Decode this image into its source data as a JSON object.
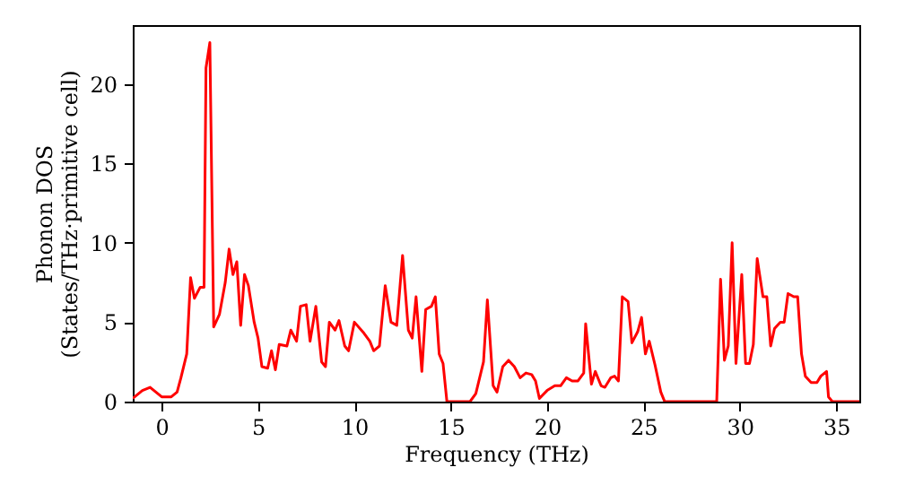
{
  "chart_data": {
    "type": "line",
    "xlabel": "Frequency (THz)",
    "ylabel": "Phonon DOS\n(States/THz·primitive cell)",
    "xlim": [
      -1.5,
      36.2
    ],
    "ylim": [
      0,
      23.7
    ],
    "xticks": [
      0,
      5,
      10,
      15,
      20,
      25,
      30,
      35
    ],
    "yticks": [
      0,
      5,
      10,
      15,
      20
    ],
    "grid": false,
    "series": [
      {
        "color": "#ff0000",
        "x": [
          -1.5,
          -1,
          -0.6,
          0,
          0.5,
          0.8,
          1,
          1.3,
          1.5,
          1.7,
          2,
          2.2,
          2.3,
          2.5,
          2.7,
          3,
          3.3,
          3.5,
          3.7,
          3.9,
          4.1,
          4.3,
          4.5,
          4.8,
          5,
          5.2,
          5.5,
          5.7,
          5.9,
          6.1,
          6.5,
          6.7,
          7,
          7.2,
          7.5,
          7.7,
          8,
          8.3,
          8.5,
          8.7,
          9,
          9.2,
          9.5,
          9.7,
          10,
          10.5,
          10.8,
          11,
          11.3,
          11.6,
          11.9,
          12.2,
          12.5,
          12.8,
          13,
          13.2,
          13.5,
          13.7,
          14,
          14.2,
          14.4,
          14.6,
          14.8,
          16,
          16.3,
          16.7,
          16.9,
          17.2,
          17.4,
          17.7,
          18,
          18.3,
          18.6,
          18.9,
          19.2,
          19.4,
          19.6,
          20,
          20.4,
          20.7,
          21,
          21.3,
          21.6,
          21.9,
          22,
          22.3,
          22.5,
          22.8,
          23,
          23.3,
          23.5,
          23.7,
          23.9,
          24.2,
          24.4,
          24.7,
          24.9,
          25.1,
          25.3,
          25.6,
          25.9,
          26.1,
          28.8,
          29,
          29.2,
          29.4,
          29.6,
          29.8,
          30.1,
          30.3,
          30.5,
          30.7,
          30.9,
          31.2,
          31.4,
          31.6,
          31.8,
          32.1,
          32.3,
          32.5,
          32.8,
          33,
          33.2,
          33.4,
          33.7,
          34,
          34.2,
          34.5,
          34.6,
          34.8,
          36.2
        ],
        "values": [
          0.2,
          0.7,
          0.9,
          0.3,
          0.3,
          0.6,
          1.5,
          3,
          7.8,
          6.5,
          7.2,
          7.2,
          21,
          22.6,
          4.7,
          5.5,
          7.5,
          9.6,
          8,
          8.8,
          4.8,
          8,
          7.3,
          5,
          4,
          2.2,
          2.1,
          3.2,
          2,
          3.6,
          3.5,
          4.5,
          3.8,
          6,
          6.1,
          3.8,
          6,
          2.5,
          2.2,
          5,
          4.5,
          5.1,
          3.5,
          3.2,
          5,
          4.3,
          3.8,
          3.2,
          3.5,
          7.3,
          5,
          4.8,
          9.2,
          4.5,
          4,
          6.6,
          1.9,
          5.8,
          6,
          6.6,
          3,
          2.4,
          0,
          0,
          0.5,
          2.5,
          6.4,
          1,
          0.6,
          2.2,
          2.6,
          2.2,
          1.5,
          1.8,
          1.7,
          1.3,
          0.2,
          0.7,
          1,
          1,
          1.5,
          1.3,
          1.3,
          1.8,
          4.9,
          1.1,
          1.9,
          1,
          0.9,
          1.5,
          1.6,
          1.3,
          6.6,
          6.3,
          3.7,
          4.4,
          5.3,
          3,
          3.8,
          2.3,
          0.6,
          0,
          0,
          7.7,
          2.6,
          3.5,
          10,
          2.4,
          8,
          2.4,
          2.4,
          3.6,
          9,
          6.6,
          6.6,
          3.5,
          4.6,
          5,
          5,
          6.8,
          6.6,
          6.6,
          3,
          1.6,
          1.2,
          1.2,
          1.6,
          1.9,
          0.3,
          0,
          0
        ]
      }
    ]
  }
}
